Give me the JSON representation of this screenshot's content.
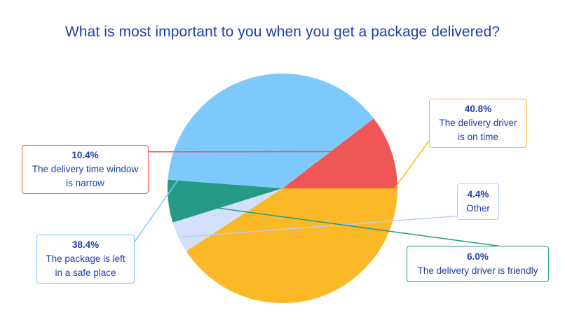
{
  "chart_data": {
    "type": "pie",
    "title": "What is most important to you when you get a package delivered?",
    "slices": [
      {
        "label": "The delivery driver\nis on time",
        "value": 40.8,
        "value_label": "40.8%",
        "color": "#fbb827"
      },
      {
        "label": "Other",
        "value": 4.4,
        "value_label": "4.4%",
        "color": "#d2e0fc"
      },
      {
        "label": "The delivery driver is friendly",
        "value": 6.0,
        "value_label": "6.0%",
        "color": "#259a84"
      },
      {
        "label": "The package is left\nin a safe place",
        "value": 38.4,
        "value_label": "38.4%",
        "color": "#7ec9fb"
      },
      {
        "label": "The delivery time window\nis narrow",
        "value": 10.4,
        "value_label": "10.4%",
        "color": "#ef5757"
      }
    ],
    "start_angle": "3 o'clock, clockwise",
    "legend": "none (callout labels)"
  }
}
